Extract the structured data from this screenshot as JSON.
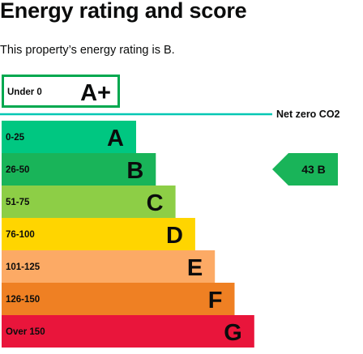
{
  "header": {
    "title": "Energy rating and score",
    "subtitle": "This property’s energy rating is B."
  },
  "chart_data": {
    "type": "bar",
    "bands": [
      {
        "letter": "A+",
        "range": "Under 0",
        "color": "#00a84f",
        "outlined": true
      },
      {
        "letter": "A",
        "range": "0-25",
        "color": "#00c781"
      },
      {
        "letter": "B",
        "range": "26-50",
        "color": "#19b459"
      },
      {
        "letter": "C",
        "range": "51-75",
        "color": "#8dce46"
      },
      {
        "letter": "D",
        "range": "76-100",
        "color": "#ffd500"
      },
      {
        "letter": "E",
        "range": "101-125",
        "color": "#fcaa65"
      },
      {
        "letter": "F",
        "range": "126-150",
        "color": "#ef8023"
      },
      {
        "letter": "G",
        "range": "Over 150",
        "color": "#e9153b"
      }
    ],
    "net_zero_line": {
      "label": "Net zero CO2",
      "color": "#00c7b4"
    },
    "current_rating": {
      "score": 43,
      "letter": "B",
      "label": "43  B",
      "band": "B",
      "color": "#19b459"
    }
  }
}
